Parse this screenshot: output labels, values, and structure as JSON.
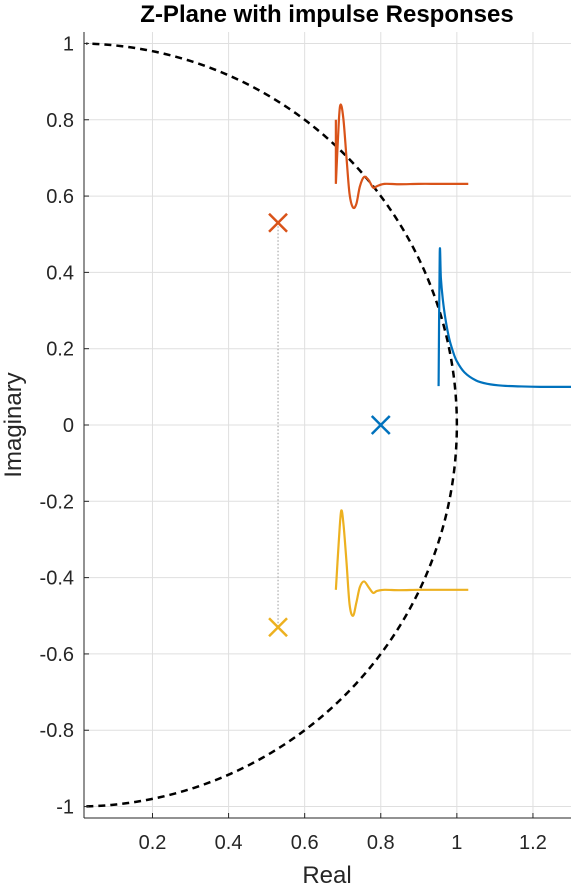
{
  "chart_data": {
    "type": "scatter",
    "title": "Z-Plane with impulse Responses",
    "xlabel": "Real",
    "ylabel": "Imaginary",
    "xlim": [
      0.02,
      1.3
    ],
    "ylim": [
      -1.03,
      1.03
    ],
    "xticks": [
      0.2,
      0.4,
      0.6,
      0.8,
      1,
      1.2
    ],
    "xtick_labels": [
      "0.2",
      "0.4",
      "0.6",
      "0.8",
      "1",
      "1.2"
    ],
    "yticks": [
      1,
      0.8,
      0.6,
      0.4,
      0.2,
      0,
      -0.2,
      -0.4,
      -0.6,
      -0.8,
      -1
    ],
    "ytick_labels": [
      "1",
      "0.8",
      "0.6",
      "0.4",
      "0.2",
      "0",
      "-0.2",
      "-0.4",
      "-0.6",
      "-0.8",
      "-1"
    ],
    "grid": true,
    "unit_circle": {
      "style": "dashed",
      "color": "#000000"
    },
    "poles": [
      {
        "x": 0.8,
        "y": 0.0,
        "color": "#0072BD"
      },
      {
        "x": 0.53,
        "y": 0.53,
        "color": "#D95319"
      },
      {
        "x": 0.53,
        "y": -0.53,
        "color": "#EDB120"
      }
    ],
    "conjugate_link": {
      "x": 0.53,
      "y1": 0.53,
      "y2": -0.53,
      "color": "#999999"
    },
    "impulse_responses": [
      {
        "color": "#0072BD",
        "x": [
          0.952,
          0.955,
          0.958,
          0.963,
          0.97,
          0.98,
          0.99,
          1.0,
          1.02,
          1.05,
          1.08,
          1.12,
          1.17,
          1.22,
          1.27,
          1.3
        ],
        "y": [
          0.102,
          0.45,
          0.385,
          0.33,
          0.278,
          0.226,
          0.192,
          0.167,
          0.138,
          0.117,
          0.108,
          0.103,
          0.101,
          0.1,
          0.1,
          0.1
        ]
      },
      {
        "color": "#D95319",
        "x": [
          0.682,
          0.69,
          0.695,
          0.702,
          0.71,
          0.718,
          0.727,
          0.736,
          0.745,
          0.756,
          0.768,
          0.78,
          0.79,
          0.81,
          0.85,
          0.9,
          0.95,
          1.0,
          1.03
        ],
        "y": [
          0.632,
          0.8,
          0.84,
          0.8,
          0.7,
          0.605,
          0.57,
          0.58,
          0.625,
          0.65,
          0.642,
          0.622,
          0.626,
          0.632,
          0.631,
          0.632,
          0.632,
          0.632,
          0.632
        ],
        "vertical_start": [
          0.682,
          0.632,
          0.682,
          0.8
        ]
      },
      {
        "color": "#EDB120",
        "x": [
          0.682,
          0.69,
          0.696,
          0.702,
          0.71,
          0.718,
          0.727,
          0.736,
          0.745,
          0.756,
          0.768,
          0.78,
          0.79,
          0.81,
          0.85,
          0.9,
          0.95,
          1.0,
          1.03
        ],
        "y": [
          -0.432,
          -0.3,
          -0.225,
          -0.26,
          -0.36,
          -0.47,
          -0.5,
          -0.465,
          -0.425,
          -0.41,
          -0.425,
          -0.44,
          -0.435,
          -0.432,
          -0.433,
          -0.432,
          -0.432,
          -0.432,
          -0.432
        ]
      }
    ]
  }
}
